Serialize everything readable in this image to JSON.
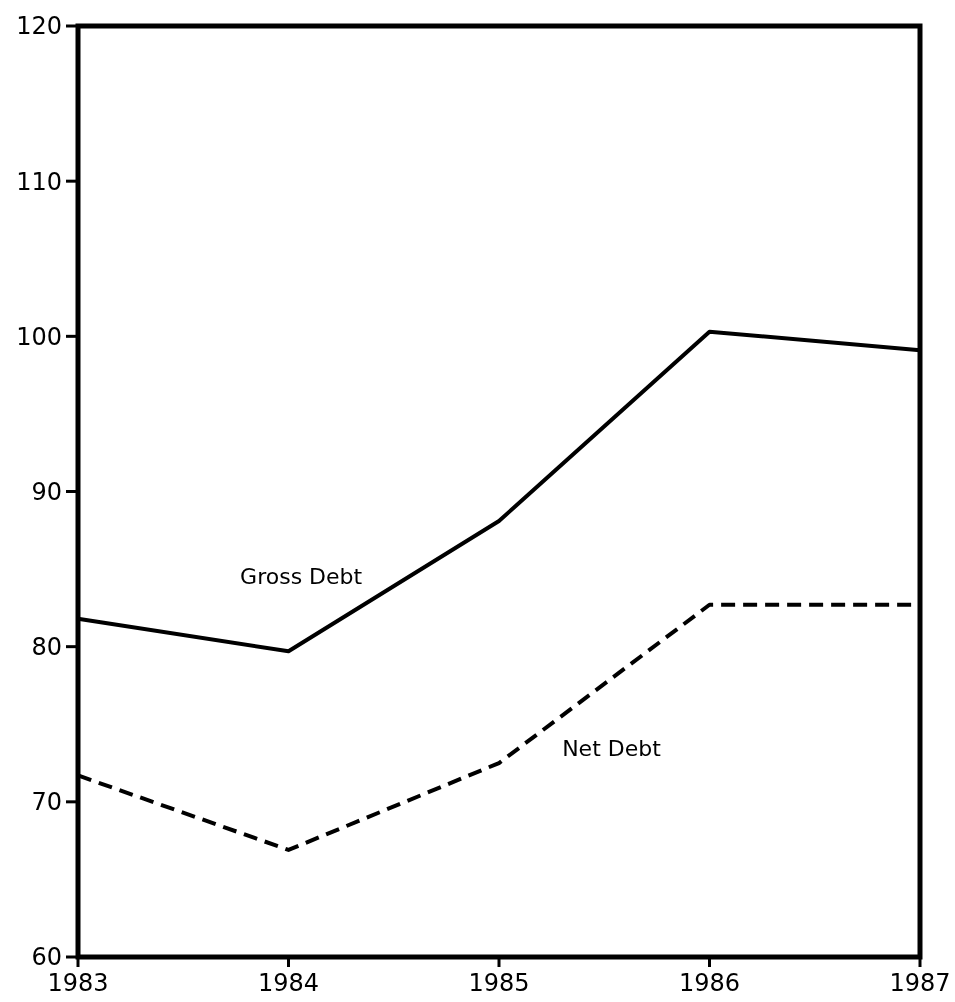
{
  "chart_data": {
    "type": "line",
    "categories": [
      "1983",
      "1984",
      "1985",
      "1986",
      "1987"
    ],
    "ylim": [
      60,
      120
    ],
    "yticks": [
      60,
      70,
      80,
      90,
      100,
      110,
      120
    ],
    "grid": false,
    "legend": false,
    "series": [
      {
        "name": "Gross Debt",
        "color": "#000000",
        "line_style": "solid",
        "values": [
          81.8,
          79.7,
          88.1,
          100.3,
          99.1
        ]
      },
      {
        "name": "Net Debt",
        "color": "#000000",
        "line_style": "dashed",
        "values": [
          71.7,
          66.9,
          72.5,
          82.7,
          82.7
        ]
      }
    ]
  }
}
